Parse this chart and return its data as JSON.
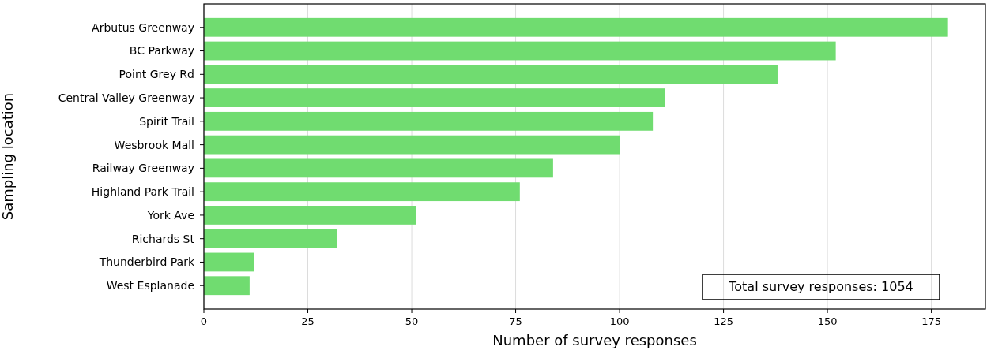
{
  "chart_data": {
    "type": "bar",
    "orientation": "horizontal",
    "xlabel": "Number of survey responses",
    "ylabel": "Sampling location",
    "categories": [
      "Arbutus Greenway",
      "BC Parkway",
      "Point Grey Rd",
      "Central Valley Greenway",
      "Spirit Trail",
      "Wesbrook Mall",
      "Railway Greenway",
      "Highland Park Trail",
      "York Ave",
      "Richards St",
      "Thunderbird Park",
      "West Esplanade"
    ],
    "values": [
      179,
      152,
      138,
      111,
      108,
      100,
      84,
      76,
      51,
      32,
      12,
      11
    ],
    "color": "#70dc70",
    "xlim": [
      0,
      188
    ],
    "xticks": [
      0,
      25,
      50,
      75,
      100,
      125,
      150,
      175
    ],
    "grid": "x",
    "annotations": [
      "Total survey responses: 1054"
    ]
  }
}
